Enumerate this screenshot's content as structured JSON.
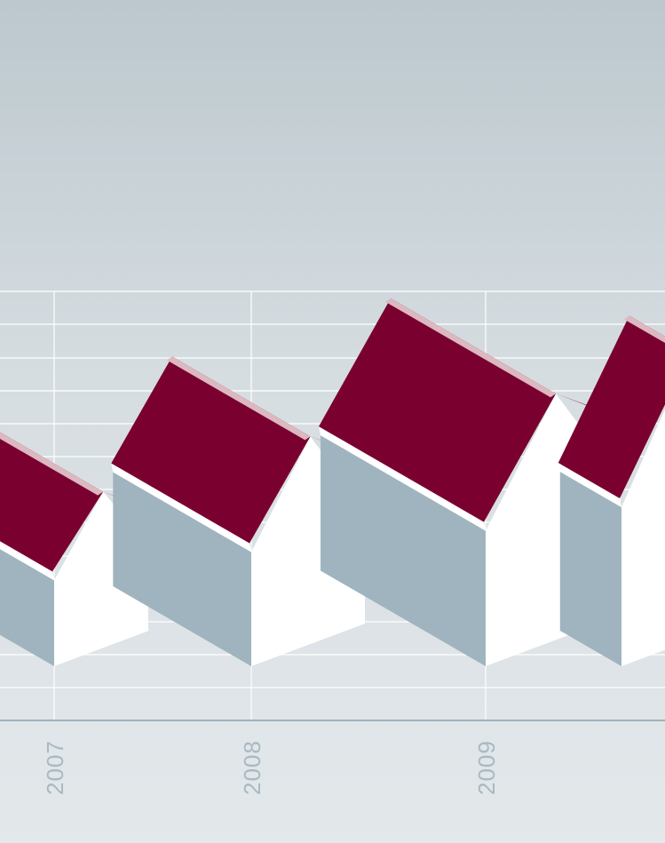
{
  "chart_data": {
    "type": "bar",
    "style": "isometric-house-pictogram",
    "title": "",
    "xlabel": "",
    "ylabel": "",
    "categories": [
      "2007",
      "2008",
      "2009"
    ],
    "values": [
      0.49,
      0.61,
      0.7
    ],
    "partial_next_value": 0.8,
    "ylim": [
      0,
      1
    ],
    "grid": true,
    "legend": "none",
    "colors": {
      "roof": "#7a0030",
      "roof_highlight": "#dcb8c0",
      "wall_front": "#ffffff",
      "wall_side": "#9fb4be",
      "grid": "#ffffff",
      "baseline": "#9fb2bb",
      "tick_label": "#a8b9c1"
    }
  }
}
